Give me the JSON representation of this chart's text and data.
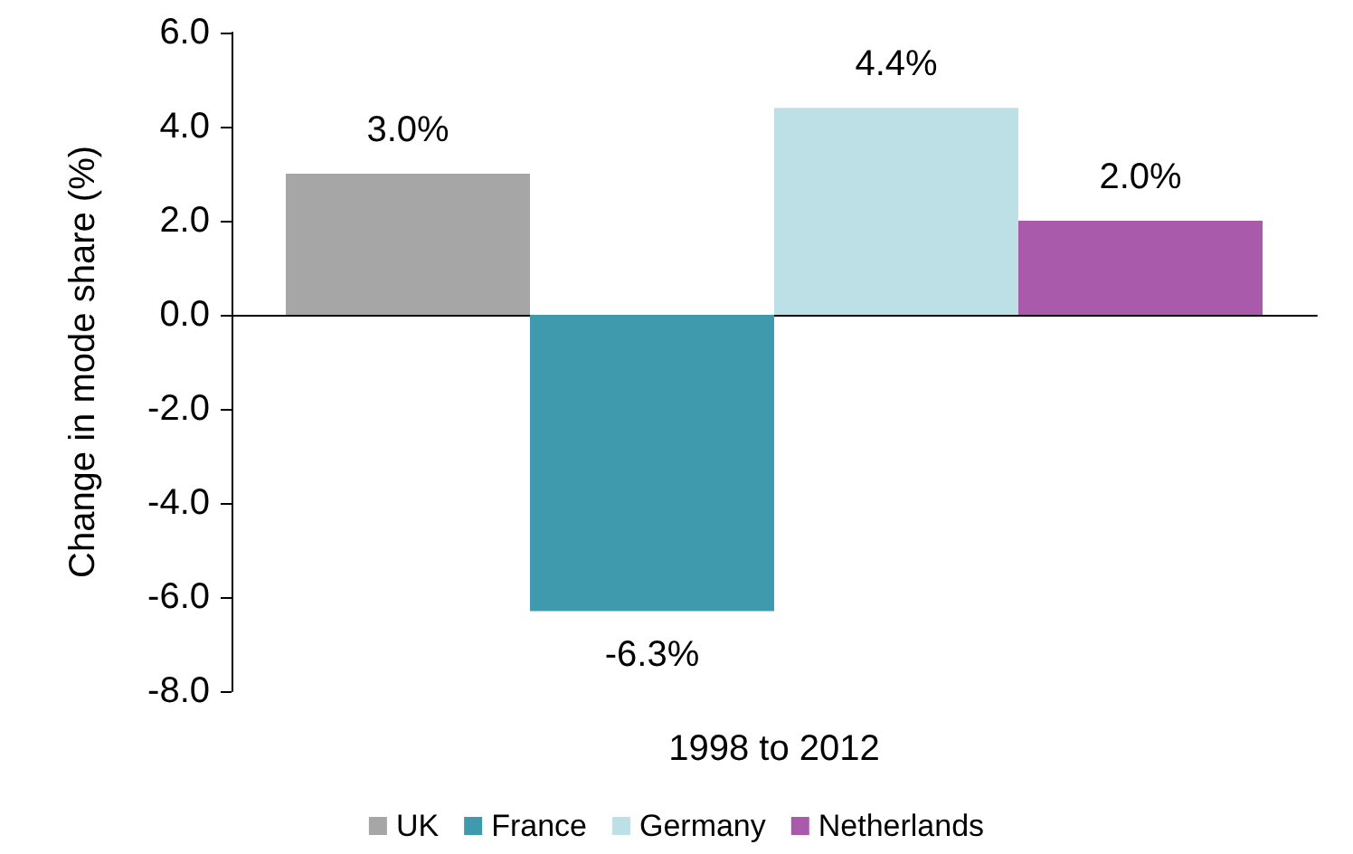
{
  "chart_data": {
    "type": "bar",
    "ylabel": "Change in mode share (%)",
    "categories": [
      "1998 to 2012"
    ],
    "series": [
      {
        "name": "UK",
        "color": "#a6a6a6",
        "values": [
          3.0
        ],
        "value_labels": [
          "3.0%"
        ]
      },
      {
        "name": "France",
        "color": "#3f9aad",
        "values": [
          -6.3
        ],
        "value_labels": [
          "-6.3%"
        ]
      },
      {
        "name": "Germany",
        "color": "#bde0e6",
        "values": [
          4.4
        ],
        "value_labels": [
          "4.4%"
        ]
      },
      {
        "name": "Netherlands",
        "color": "#a95aab",
        "values": [
          2.0
        ],
        "value_labels": [
          "2.0%"
        ]
      }
    ],
    "ylim": [
      -8,
      6
    ],
    "yticks": [
      {
        "value": -8,
        "label": "-8.0"
      },
      {
        "value": -6,
        "label": "-6.0"
      },
      {
        "value": -4,
        "label": "-4.0"
      },
      {
        "value": -2,
        "label": "-2.0"
      },
      {
        "value": 0,
        "label": "0.0"
      },
      {
        "value": 2,
        "label": "2.0"
      },
      {
        "value": 4,
        "label": "4.0"
      },
      {
        "value": 6,
        "label": "6.0"
      }
    ],
    "legend": "bottom"
  }
}
